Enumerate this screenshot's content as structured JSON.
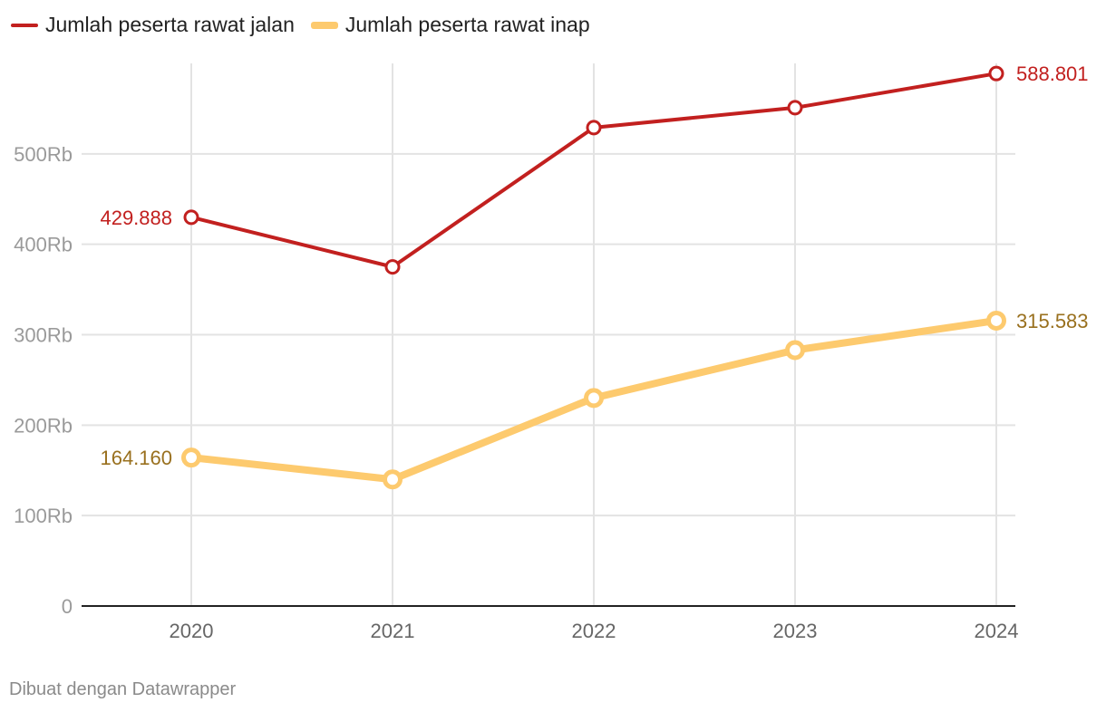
{
  "chart_data": {
    "type": "line",
    "categories": [
      "2020",
      "2021",
      "2022",
      "2023",
      "2024"
    ],
    "series": [
      {
        "name": "Jumlah peserta rawat jalan",
        "color": "#c2201f",
        "label_color": "#c2201f",
        "values": [
          429888,
          375000,
          529000,
          551000,
          588801
        ],
        "labels": [
          "429.888",
          "",
          "",
          "",
          "588.801"
        ]
      },
      {
        "name": "Jumlah peserta rawat inap",
        "color": "#fdca6e",
        "label_color": "#99701e",
        "values": [
          164160,
          140000,
          230000,
          283000,
          315583
        ],
        "labels": [
          "164.160",
          "",
          "",
          "",
          "315.583"
        ]
      }
    ],
    "y_ticks": [
      0,
      100000,
      200000,
      300000,
      400000,
      500000
    ],
    "y_tick_labels": [
      "0",
      "100Rb",
      "200Rb",
      "300Rb",
      "400Rb",
      "500Rb"
    ],
    "ylim": [
      0,
      600000
    ],
    "grid": true,
    "legend_position": "top-left"
  },
  "footer": "Dibuat dengan Datawrapper"
}
